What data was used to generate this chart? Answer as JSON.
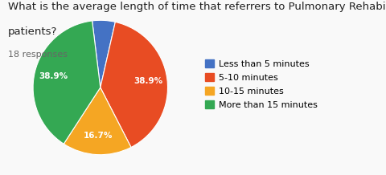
{
  "title_line1": "What is the average length of time that referrers to Pulmonary Rehabilitation have with their",
  "title_line2": "patients?",
  "subtitle": "18 responses",
  "labels": [
    "Less than 5 minutes",
    "5-10 minutes",
    "10-15 minutes",
    "More than 15 minutes"
  ],
  "values": [
    5.5,
    38.9,
    16.7,
    38.9
  ],
  "colors": [
    "#4472c4",
    "#e84c23",
    "#f5a623",
    "#34a853"
  ],
  "background_color": "#f9f9f9",
  "title_fontsize": 9.5,
  "subtitle_fontsize": 8,
  "legend_fontsize": 8,
  "pct_fontsize": 7.5,
  "startangle": 97,
  "pctdistance": 0.72
}
